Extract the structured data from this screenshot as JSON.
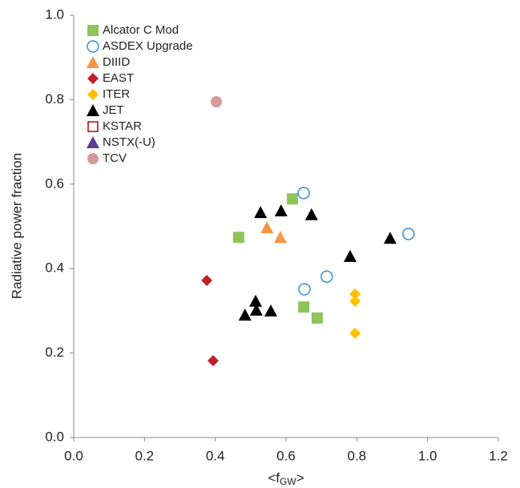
{
  "chart_data": {
    "type": "scatter",
    "xlabel": {
      "text": "<f",
      "sub": "GW",
      "end": ">"
    },
    "ylabel": "Radiative power fraction",
    "xlim": [
      0,
      1.2
    ],
    "xticks": [
      {
        "value": 0,
        "label": "0.0"
      },
      0.2,
      0.4,
      0.6,
      0.8,
      {
        "value": 1,
        "label": "1.0"
      },
      1.2
    ],
    "ylim": [
      0,
      1
    ],
    "yticks": [
      {
        "value": 0,
        "label": "0.0"
      },
      0.2,
      0.4,
      0.6,
      0.8,
      {
        "value": 1,
        "label": "1.0"
      }
    ],
    "legend": "top-left",
    "series": [
      {
        "name": "Alcator C Mod",
        "color": "#8fc45a",
        "marker": "square",
        "x": [
          0.466,
          0.618,
          0.65,
          0.688
        ],
        "y": [
          0.474,
          0.565,
          0.309,
          0.283
        ]
      },
      {
        "name": "ASDEX Upgrade",
        "color": "#3a8fd6",
        "marker": "circle-open",
        "x": [
          0.65,
          0.652,
          0.715,
          0.946
        ],
        "y": [
          0.579,
          0.351,
          0.381,
          0.482
        ]
      },
      {
        "name": "DIIID",
        "color": "#f79646",
        "marker": "triangle",
        "x": [
          0.546,
          0.584
        ],
        "y": [
          0.497,
          0.474
        ]
      },
      {
        "name": "EAST",
        "color": "#c0202a",
        "marker": "diamond",
        "x": [
          0.376,
          0.394
        ],
        "y": [
          0.372,
          0.182
        ]
      },
      {
        "name": "ITER",
        "color": "#ffc000",
        "marker": "diamond",
        "x": [
          0.795,
          0.795,
          0.795
        ],
        "y": [
          0.34,
          0.323,
          0.247
        ]
      },
      {
        "name": "JET",
        "color": "#000000",
        "marker": "triangle",
        "x": [
          0.528,
          0.586,
          0.672,
          0.781,
          0.894,
          0.484,
          0.514,
          0.516,
          0.557
        ],
        "y": [
          0.533,
          0.537,
          0.528,
          0.429,
          0.472,
          0.29,
          0.323,
          0.302,
          0.3
        ]
      },
      {
        "name": "KSTAR",
        "color": "#c00000",
        "marker": "square-open",
        "x": [],
        "y": []
      },
      {
        "name": "NSTX(-U)",
        "color": "#5b3c94",
        "marker": "triangle",
        "x": [],
        "y": []
      },
      {
        "name": "TCV",
        "color": "#d49a9a",
        "marker": "circle",
        "x": [
          0.403
        ],
        "y": [
          0.795
        ]
      }
    ]
  }
}
